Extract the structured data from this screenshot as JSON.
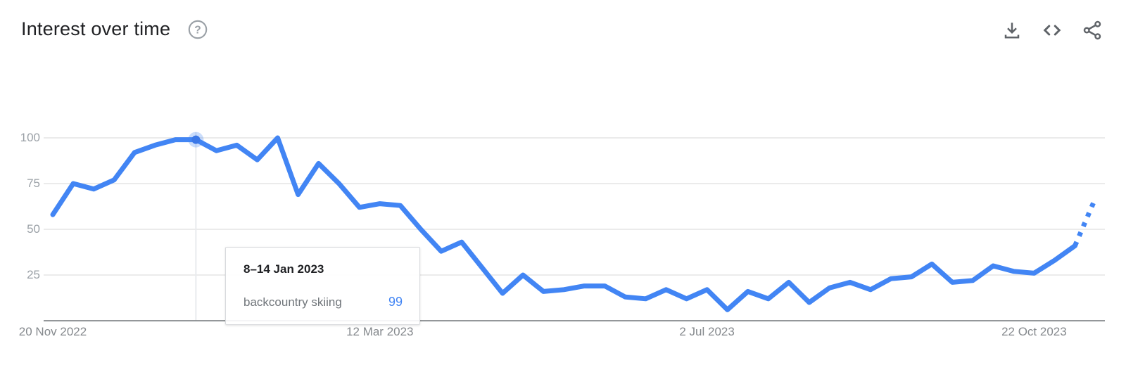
{
  "header": {
    "title": "Interest over time",
    "help_icon": "circle-question-icon"
  },
  "toolbar": {
    "icons": [
      {
        "name": "download-icon",
        "action": "Download"
      },
      {
        "name": "embed-icon",
        "action": "Embed"
      },
      {
        "name": "share-icon",
        "action": "Share"
      }
    ],
    "icon_color": "#5f6368"
  },
  "chart_data": {
    "type": "line",
    "title": "Interest over time",
    "xlabel": "",
    "ylabel": "",
    "ylim": [
      0,
      100
    ],
    "grid": true,
    "legend": "none",
    "line_color": "#4285f4",
    "series": [
      {
        "name": "backcountry skiing",
        "values": [
          58,
          75,
          72,
          77,
          92,
          96,
          99,
          99,
          93,
          96,
          88,
          100,
          69,
          86,
          75,
          62,
          64,
          63,
          50,
          38,
          43,
          29,
          15,
          25,
          16,
          17,
          19,
          19,
          13,
          12,
          17,
          12,
          17,
          6,
          16,
          12,
          21,
          10,
          18,
          21,
          17,
          23,
          24,
          31,
          21,
          22,
          30,
          27,
          26,
          33,
          41,
          67
        ],
        "dashed_tail_segments": 1
      }
    ],
    "x_tick_labels": [
      {
        "index": 0,
        "label": "20 Nov 2022"
      },
      {
        "index": 16,
        "label": "12 Mar 2023"
      },
      {
        "index": 32,
        "label": "2 Jul 2023"
      },
      {
        "index": 48,
        "label": "22 Oct 2023"
      }
    ],
    "y_ticks": [
      100,
      75,
      50,
      25
    ],
    "highlight": {
      "index": 7,
      "date_label": "8–14 Jan 2023",
      "term": "backcountry skiing",
      "value": 99
    }
  }
}
